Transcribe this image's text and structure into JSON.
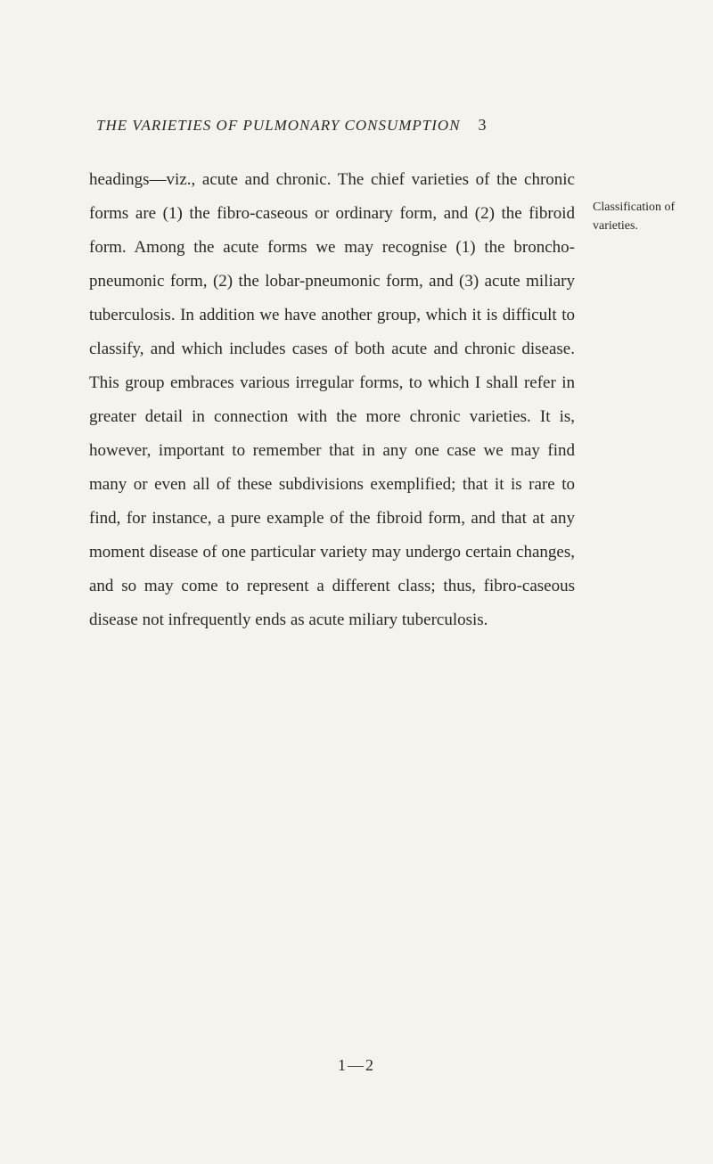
{
  "header": {
    "title": "THE VARIETIES OF PULMONARY CONSUMPTION",
    "pageNumber": "3"
  },
  "body": {
    "text": "headings—viz., acute and chronic. The chief varieties of the chronic forms are (1) the fibro-caseous or ordinary form, and (2) the fibroid form. Among the acute forms we may recognise (1) the broncho-pneumonic form, (2) the lobar-pneumonic form, and (3) acute miliary tuberculosis. In addition we have another group, which it is difficult to classify, and which includes cases of both acute and chronic disease. This group embraces various irregular forms, to which I shall refer in greater detail in connection with the more chronic varieties. It is, however, important to remember that in any one case we may find many or even all of these subdivisions exemplified; that it is rare to find, for instance, a pure example of the fibroid form, and that at any moment disease of one particular variety may undergo certain changes, and so may come to represent a different class; thus, fibro-caseous disease not infrequently ends as acute miliary tuberculosis."
  },
  "marginNotes": {
    "note1": "Classification of varieties."
  },
  "signatureMark": "1—2",
  "styling": {
    "pageWidth": 800,
    "pageHeight": 1306,
    "backgroundColor": "#f5f3ed",
    "textColor": "#2a2824",
    "headerFontSize": 17,
    "bodyFontSize": 19,
    "bodyLineHeight": 2.0,
    "marginNoteFontSize": 14,
    "signatureFontSize": 18,
    "fontFamily": "Georgia, Times New Roman, serif"
  }
}
